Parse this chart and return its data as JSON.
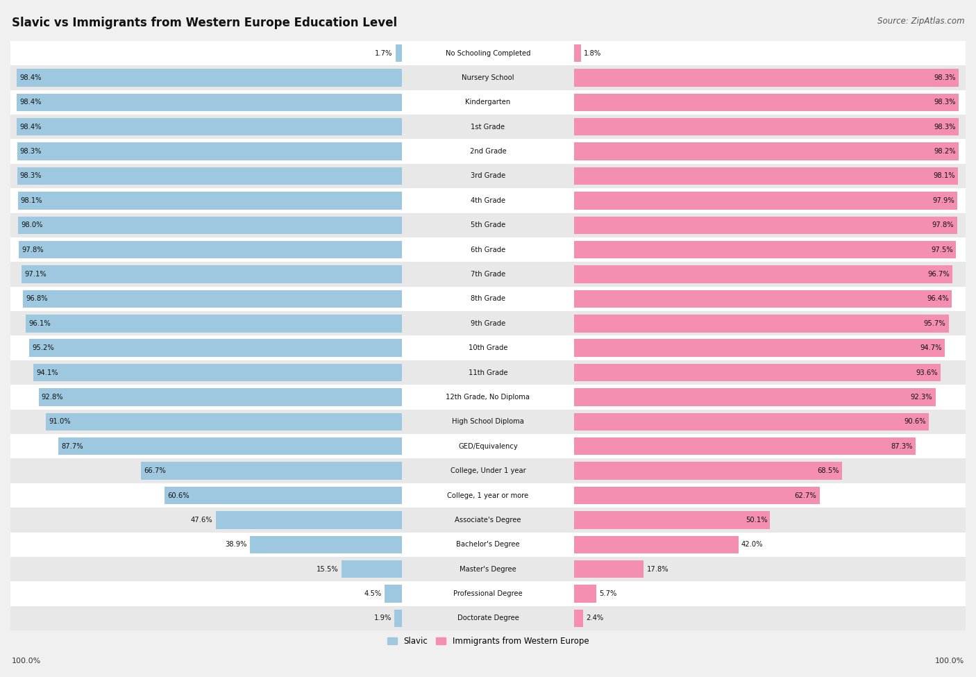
{
  "title": "Slavic vs Immigrants from Western Europe Education Level",
  "source": "Source: ZipAtlas.com",
  "categories": [
    "No Schooling Completed",
    "Nursery School",
    "Kindergarten",
    "1st Grade",
    "2nd Grade",
    "3rd Grade",
    "4th Grade",
    "5th Grade",
    "6th Grade",
    "7th Grade",
    "8th Grade",
    "9th Grade",
    "10th Grade",
    "11th Grade",
    "12th Grade, No Diploma",
    "High School Diploma",
    "GED/Equivalency",
    "College, Under 1 year",
    "College, 1 year or more",
    "Associate's Degree",
    "Bachelor's Degree",
    "Master's Degree",
    "Professional Degree",
    "Doctorate Degree"
  ],
  "slavic": [
    1.7,
    98.4,
    98.4,
    98.4,
    98.3,
    98.3,
    98.1,
    98.0,
    97.8,
    97.1,
    96.8,
    96.1,
    95.2,
    94.1,
    92.8,
    91.0,
    87.7,
    66.7,
    60.6,
    47.6,
    38.9,
    15.5,
    4.5,
    1.9
  ],
  "western": [
    1.8,
    98.3,
    98.3,
    98.3,
    98.2,
    98.1,
    97.9,
    97.8,
    97.5,
    96.7,
    96.4,
    95.7,
    94.7,
    93.6,
    92.3,
    90.6,
    87.3,
    68.5,
    62.7,
    50.1,
    42.0,
    17.8,
    5.7,
    2.4
  ],
  "slavic_color": "#9ec8e0",
  "western_color": "#f48fb1",
  "background_color": "#f0f0f0",
  "bar_bg_even": "#ffffff",
  "bar_bg_odd": "#e8e8e8",
  "legend_slavic": "Slavic",
  "legend_western": "Immigrants from Western Europe",
  "left_label": "100.0%",
  "right_label": "100.0%"
}
